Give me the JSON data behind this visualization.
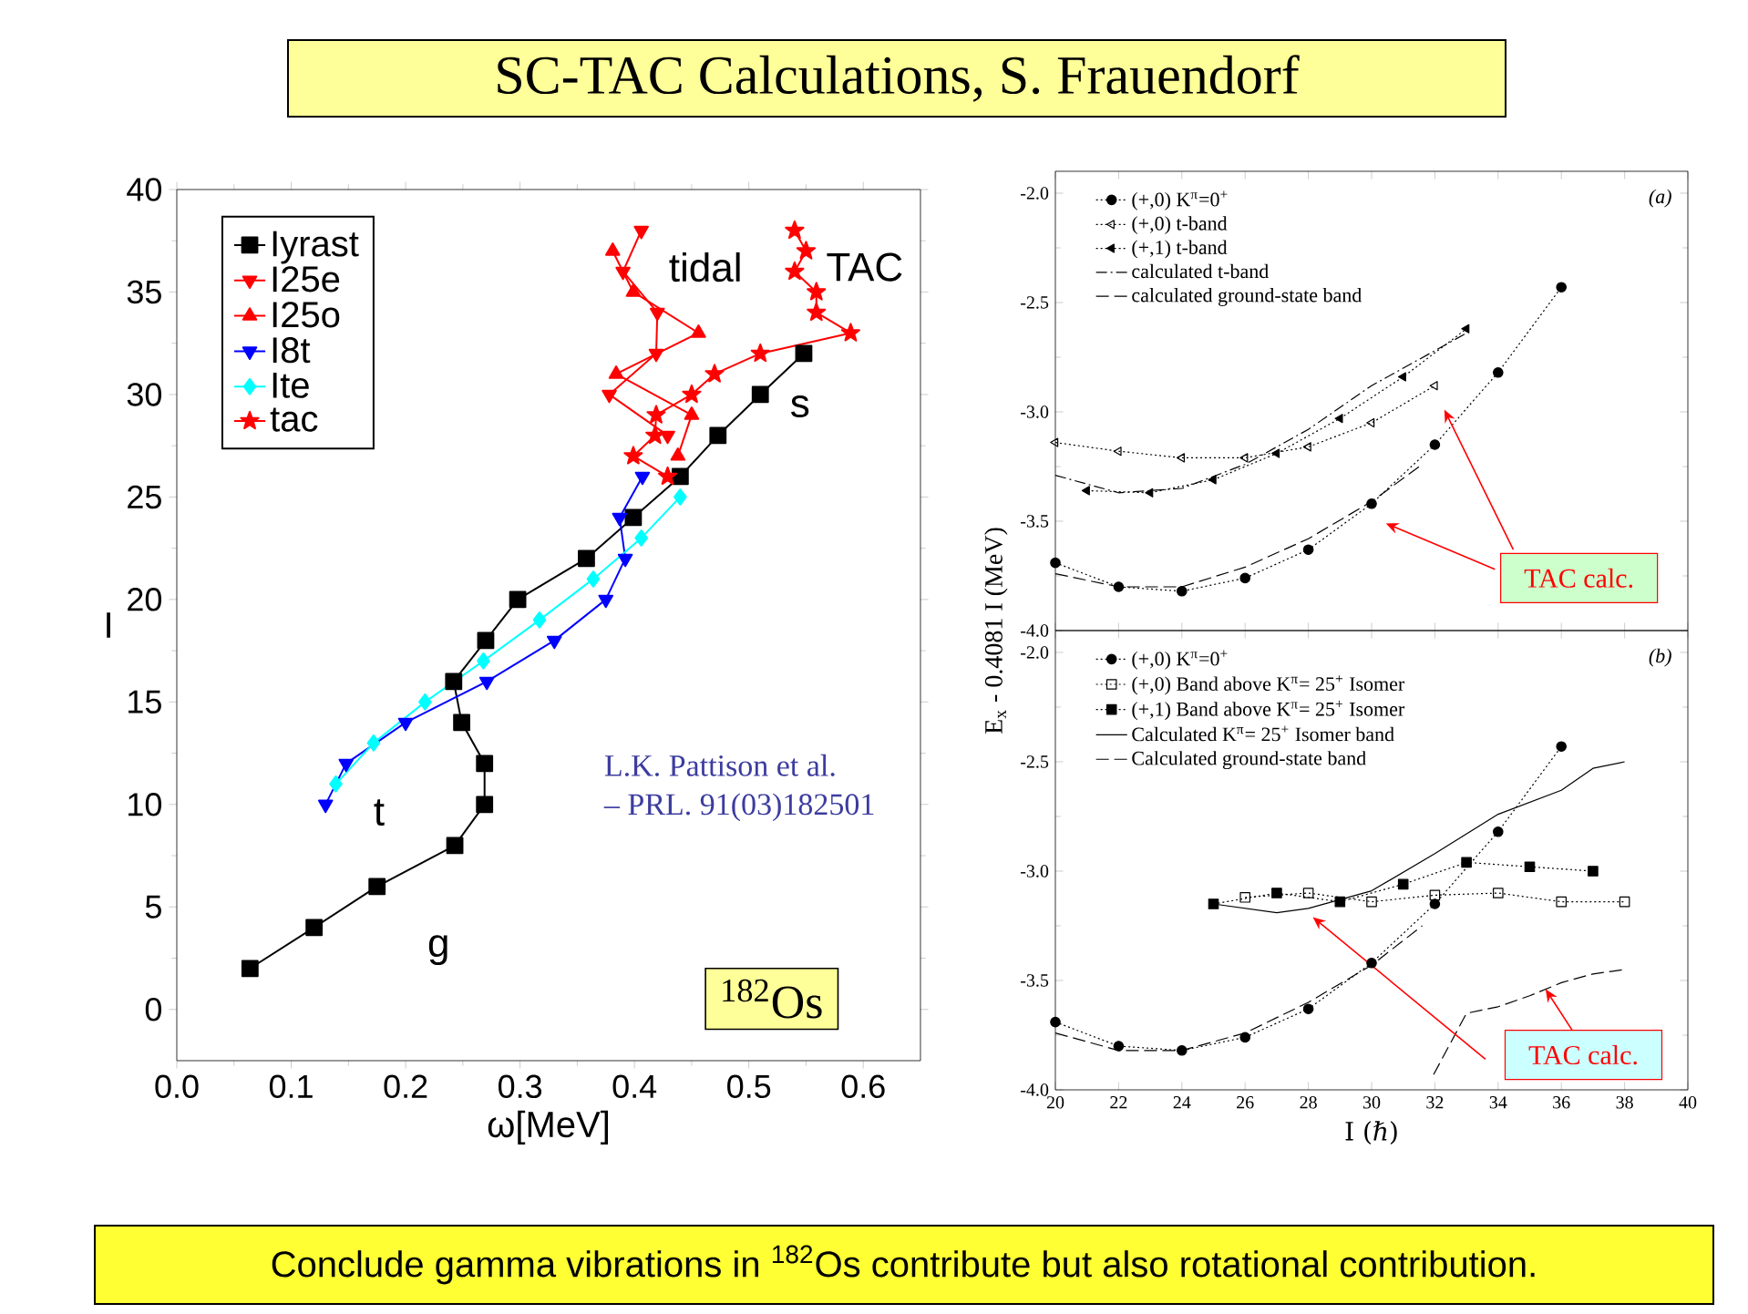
{
  "chart_data": [
    {
      "type": "line",
      "title": "SC-TAC Calculations, S. Frauendorf",
      "xlabel": "ω[MeV]",
      "ylabel": "I",
      "xlim": [
        0,
        0.65
      ],
      "ylim": [
        -2.5,
        40
      ],
      "xticks": [
        {
          "value": 0,
          "label": "0.0"
        },
        {
          "value": 0.1,
          "label": "0.1"
        },
        {
          "value": 0.2,
          "label": "0.2"
        },
        {
          "value": 0.3,
          "label": "0.3"
        },
        {
          "value": 0.4,
          "label": "0.4"
        },
        {
          "value": 0.5,
          "label": "0.5"
        },
        {
          "value": 0.6,
          "label": "0.6"
        }
      ],
      "yticks": [
        0,
        5,
        10,
        15,
        20,
        25,
        30,
        35,
        40
      ],
      "legend": "top left",
      "series": [
        {
          "name": "Iyrast",
          "color": "#000000",
          "marker": "square",
          "x": [
            0.064,
            0.12,
            0.175,
            0.243,
            0.269,
            0.269,
            0.249,
            0.242,
            0.27,
            0.298,
            0.358,
            0.399,
            0.44,
            0.473,
            0.51,
            0.548
          ],
          "values": [
            2,
            4,
            6,
            8,
            10,
            12,
            14,
            16,
            18,
            20,
            22,
            24,
            26,
            28,
            30,
            32
          ]
        },
        {
          "name": "I25e",
          "color": "#ff0000",
          "marker": "triangle-down",
          "x": [
            0.429,
            0.378,
            0.419,
            0.42,
            0.39,
            0.406
          ],
          "values": [
            28,
            30,
            32,
            34,
            36,
            38
          ]
        },
        {
          "name": "I25o",
          "color": "#ff0000",
          "marker": "triangle",
          "x": [
            0.438,
            0.45,
            0.384,
            0.456,
            0.399,
            0.381
          ],
          "values": [
            27,
            29,
            31,
            33,
            35,
            37
          ]
        },
        {
          "name": "I8t",
          "color": "#0000ff",
          "marker": "triangle-down",
          "x": [
            0.13,
            0.148,
            0.2,
            0.271,
            0.33,
            0.375,
            0.392,
            0.387,
            0.407
          ],
          "values": [
            10,
            12,
            14,
            16,
            18,
            20,
            22,
            24,
            26
          ]
        },
        {
          "name": "Ite",
          "color": "#00ffff",
          "marker": "diamond",
          "x": [
            0.139,
            0.172,
            0.217,
            0.268,
            0.317,
            0.364,
            0.406,
            0.44
          ],
          "values": [
            11,
            13,
            15,
            17,
            19,
            21,
            23,
            25
          ]
        },
        {
          "name": "tac",
          "color": "#ff0000",
          "marker": "star",
          "x": [
            0.429,
            0.399,
            0.418,
            0.419,
            0.45,
            0.47,
            0.51,
            0.589,
            0.559,
            0.559,
            0.54,
            0.55,
            0.54
          ],
          "values": [
            26,
            27,
            28,
            29,
            30,
            31,
            32,
            33,
            34,
            35,
            36,
            37,
            38
          ]
        }
      ],
      "annotations": [
        "tidal",
        "TAC",
        "s",
        "t",
        "g",
        "L.K. Pattison et al.",
        "– PRL. 91(03)182501",
        "$^{182}$Os",
        "Conclude gamma vibrations in $^{182}$Os contribute but also rotational contribution."
      ]
    },
    {
      "type": "line",
      "xlim": [
        20,
        40
      ],
      "ylim": [
        -4.0,
        -1.9
      ],
      "xticks": [
        20,
        22,
        24,
        26,
        28,
        30,
        32,
        34,
        36,
        38,
        40
      ],
      "yticks": [
        {
          "value": -4.0,
          "label": "-4.0"
        },
        {
          "value": -3.5,
          "label": "-3.5"
        },
        {
          "value": -3.0,
          "label": "-3.0"
        },
        {
          "value": -2.5,
          "label": "-2.5"
        },
        {
          "value": -2.0,
          "label": "-2.0"
        }
      ],
      "tick_labels": "y",
      "legend": "top left",
      "series": [
        {
          "name": "(+,0) K$^{π}$=0$^{+}$",
          "color": "#000000",
          "marker": "circle",
          "line_style": "dotted",
          "x": [
            20,
            22,
            24,
            26,
            28,
            30,
            32,
            34,
            36
          ],
          "values": [
            -3.69,
            -3.8,
            -3.82,
            -3.76,
            -3.63,
            -3.42,
            -3.15,
            -2.82,
            -2.43
          ]
        },
        {
          "name": "(+,0) t-band",
          "color": "#000000",
          "marker": "triangle-left-open",
          "line_style": "dotted",
          "x": [
            20,
            22,
            24,
            26,
            28,
            30,
            32
          ],
          "values": [
            -3.14,
            -3.18,
            -3.21,
            -3.21,
            -3.16,
            -3.05,
            -2.88
          ]
        },
        {
          "name": "(+,1) t-band",
          "color": "#000000",
          "marker": "triangle-left",
          "line_style": "dotted",
          "x": [
            21,
            23,
            25,
            27,
            29,
            31,
            33
          ],
          "values": [
            -3.36,
            -3.37,
            -3.31,
            -3.19,
            -3.03,
            -2.84,
            -2.62
          ]
        },
        {
          "name": "calculated t-band",
          "color": "#000000",
          "marker": "none",
          "line_style": "dashdot",
          "x": [
            20,
            22,
            24,
            26,
            28,
            30,
            32,
            33
          ],
          "values": [
            -3.29,
            -3.37,
            -3.35,
            -3.24,
            -3.08,
            -2.88,
            -2.72,
            -2.64
          ]
        },
        {
          "name": "calculated ground-state band",
          "color": "#000000",
          "marker": "none",
          "line_style": "dashed",
          "x": [
            20,
            22,
            24,
            26,
            28,
            30,
            31.6
          ],
          "values": [
            -3.74,
            -3.8,
            -3.8,
            -3.71,
            -3.58,
            -3.41,
            -3.24
          ]
        }
      ],
      "annotations": [
        "(a)",
        "TAC calc."
      ]
    },
    {
      "type": "line",
      "xlabel": "I (ℏ)",
      "ylabel": "E$_{x}$ - 0.4081 I (MeV)",
      "xlim": [
        20,
        40
      ],
      "ylim": [
        -4.0,
        -1.9
      ],
      "xticks": [
        20,
        22,
        24,
        26,
        28,
        30,
        32,
        34,
        36,
        38,
        40
      ],
      "yticks": [
        {
          "value": -4.0,
          "label": "-4.0"
        },
        {
          "value": -3.5,
          "label": "-3.5"
        },
        {
          "value": -3.0,
          "label": "-3.0"
        },
        {
          "value": -2.5,
          "label": "-2.5"
        },
        {
          "value": -2.0,
          "label": "-2.0"
        }
      ],
      "legend": "top left",
      "series": [
        {
          "name": "(+,0) K$^{π}$=0$^{+}$",
          "color": "#000000",
          "marker": "circle",
          "line_style": "dotted",
          "x": [
            20,
            22,
            24,
            26,
            28,
            30,
            32,
            34,
            36
          ],
          "values": [
            -3.69,
            -3.8,
            -3.82,
            -3.76,
            -3.63,
            -3.42,
            -3.15,
            -2.82,
            -2.43
          ]
        },
        {
          "name": "(+,0) Band above K$^{π}$= 25$^{+}$ Isomer",
          "color": "#000000",
          "marker": "square-open",
          "line_style": "dotted",
          "x": [
            26,
            28,
            30,
            32,
            34,
            36,
            38
          ],
          "values": [
            -3.12,
            -3.1,
            -3.14,
            -3.11,
            -3.1,
            -3.14,
            -3.14
          ]
        },
        {
          "name": "(+,1) Band above K$^{π}$= 25$^{+}$ Isomer",
          "color": "#000000",
          "marker": "square",
          "line_style": "dotted",
          "x": [
            25,
            27,
            29,
            31,
            33,
            35,
            37
          ],
          "values": [
            -3.15,
            -3.1,
            -3.14,
            -3.06,
            -2.96,
            -2.98,
            -3.0
          ]
        },
        {
          "name": "Calculated K$^{π}$= 25$^{+}$ Isomer band",
          "color": "#000000",
          "marker": "none",
          "line_style": "solid",
          "x": [
            25,
            27,
            28,
            30,
            32,
            34,
            36,
            37,
            38
          ],
          "values": [
            -3.15,
            -3.19,
            -3.17,
            -3.09,
            -2.92,
            -2.74,
            -2.63,
            -2.53,
            -2.5
          ]
        },
        {
          "name": "Calculated ground-state band",
          "color": "#000000",
          "marker": "none",
          "line_style": "dashed",
          "x": [
            20,
            22,
            24,
            26,
            28,
            30,
            31.6,
            31.8,
            31.96,
            33,
            34,
            35,
            36,
            37,
            38
          ],
          "values": [
            -3.74,
            -3.82,
            -3.82,
            -3.74,
            -3.6,
            -3.43,
            -3.25,
            null,
            -3.93,
            -3.65,
            -3.62,
            -3.57,
            -3.51,
            -3.47,
            -3.45
          ]
        }
      ],
      "annotations": [
        "(b)",
        {
          "text": "TAC calc.",
          "x": 35.5,
          "y": -3.54
        }
      ]
    }
  ]
}
